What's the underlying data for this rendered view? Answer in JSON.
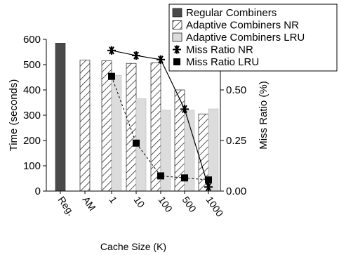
{
  "chart_data": {
    "type": "bar",
    "categories": [
      "Reg.",
      "AM",
      "1",
      "10",
      "100",
      "500",
      "1000"
    ],
    "xlabel": "Cache Size (K)",
    "ylabel_left": "Time (seconds)",
    "ylabel_right": "Miss Ratio (%)",
    "ylim_left": [
      0,
      600
    ],
    "yticks_left": [
      0,
      100,
      200,
      300,
      400,
      500,
      600
    ],
    "ylim_right": [
      0,
      0.75
    ],
    "yticks_right": [
      "0.00",
      "0.25",
      "0.50",
      "0.75"
    ],
    "grid": false,
    "legend_position": "top-right",
    "series": [
      {
        "name": "Regular Combiners",
        "kind": "bar",
        "color": "#4a4a4a",
        "values": [
          585,
          null,
          null,
          null,
          null,
          null,
          null
        ]
      },
      {
        "name": "Adaptive Combiners NR",
        "kind": "bar",
        "pattern": "hatch",
        "values": [
          null,
          518,
          515,
          505,
          507,
          400,
          305
        ]
      },
      {
        "name": "Adaptive Combiners LRU",
        "kind": "bar",
        "color": "#dcdcdc",
        "values": [
          null,
          null,
          458,
          365,
          320,
          320,
          325
        ]
      },
      {
        "name": "Miss Ratio NR",
        "kind": "line",
        "axis": "right",
        "marker": "asterisk",
        "values": [
          null,
          null,
          0.695,
          0.67,
          0.65,
          0.405,
          0.02
        ]
      },
      {
        "name": "Miss Ratio LRU",
        "kind": "line",
        "axis": "right",
        "marker": "square",
        "linestyle": "dashed",
        "values": [
          null,
          null,
          0.567,
          0.237,
          0.075,
          0.065,
          0.055
        ]
      }
    ]
  }
}
